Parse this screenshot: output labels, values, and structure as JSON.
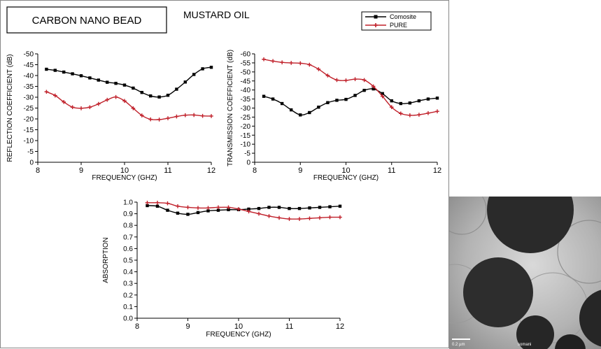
{
  "figure": {
    "title": "CARBON NANO BEAD",
    "subtitle": "MUSTARD OIL",
    "legend": [
      {
        "name": "Comosite",
        "color": "#000000",
        "marker": "square"
      },
      {
        "name": "PURE",
        "color": "#c0202a",
        "marker": "plus"
      }
    ],
    "micrograph": {
      "scale_label": "0.2 µm",
      "caption": "somani"
    }
  },
  "chart_data": [
    {
      "type": "line",
      "id": "reflection",
      "xlabel": "FREQUENCY (GHZ)",
      "ylabel": "REFLECTION COEFFICIENT (dB)",
      "xlim": [
        8,
        12
      ],
      "ylim": [
        0,
        -50
      ],
      "xticks": [
        8,
        9,
        10,
        11,
        12
      ],
      "xtick_labels": [
        "8",
        "9",
        "10",
        "11",
        "12"
      ],
      "yticks": [
        0,
        -5,
        -10,
        -15,
        -20,
        -25,
        -30,
        -35,
        -40,
        -45,
        -50
      ],
      "ytick_labels": [
        "0",
        "-5",
        "-10",
        "-15",
        "-20",
        "-25",
        "-30",
        "-35",
        "-40",
        "-45",
        "-50"
      ],
      "series": [
        {
          "name": "Comosite",
          "x": [
            8.2,
            8.4,
            8.6,
            8.8,
            9.0,
            9.2,
            9.4,
            9.6,
            9.8,
            10.0,
            10.2,
            10.4,
            10.6,
            10.8,
            11.0,
            11.2,
            11.4,
            11.6,
            11.8,
            12.0
          ],
          "y": [
            -42.9,
            -42.4,
            -41.6,
            -40.8,
            -39.9,
            -38.9,
            -37.9,
            -36.9,
            -36.4,
            -35.6,
            -34.2,
            -32.2,
            -30.6,
            -30.1,
            -30.9,
            -33.7,
            -37.0,
            -40.5,
            -43.1,
            -43.8
          ]
        },
        {
          "name": "PURE",
          "x": [
            8.2,
            8.4,
            8.6,
            8.8,
            9.0,
            9.2,
            9.4,
            9.6,
            9.8,
            10.0,
            10.2,
            10.4,
            10.6,
            10.8,
            11.0,
            11.2,
            11.4,
            11.6,
            11.8,
            12.0
          ],
          "y": [
            -32.5,
            -30.8,
            -27.8,
            -25.4,
            -24.9,
            -25.4,
            -26.9,
            -28.8,
            -30.1,
            -28.3,
            -24.9,
            -21.6,
            -19.8,
            -19.7,
            -20.3,
            -21.1,
            -21.7,
            -21.8,
            -21.4,
            -21.3
          ]
        }
      ]
    },
    {
      "type": "line",
      "id": "transmission",
      "xlabel": "FREQUENCY (GHZ)",
      "ylabel": "TRANSMISSION COEFFICIENT (dB)",
      "xlim": [
        8,
        12
      ],
      "ylim": [
        0,
        -60
      ],
      "xticks": [
        8,
        9,
        10,
        11,
        12
      ],
      "xtick_labels": [
        "8",
        "9",
        "10",
        "11",
        "12"
      ],
      "yticks": [
        0,
        -5,
        -10,
        -15,
        -20,
        -25,
        -30,
        -35,
        -40,
        -45,
        -50,
        -55,
        -60
      ],
      "ytick_labels": [
        "0",
        "-5",
        "-10",
        "-15",
        "-20",
        "-25",
        "-30",
        "-35",
        "-40",
        "-45",
        "-50",
        "-55",
        "-60"
      ],
      "series": [
        {
          "name": "Comosite",
          "x": [
            8.2,
            8.4,
            8.6,
            8.8,
            9.0,
            9.2,
            9.4,
            9.6,
            9.8,
            10.0,
            10.2,
            10.4,
            10.6,
            10.8,
            11.0,
            11.2,
            11.4,
            11.6,
            11.8,
            12.0
          ],
          "y": [
            -36.5,
            -35.0,
            -32.5,
            -29.0,
            -26.2,
            -27.5,
            -30.5,
            -33.0,
            -34.3,
            -34.8,
            -37.0,
            -39.8,
            -40.6,
            -38.0,
            -34.0,
            -32.5,
            -32.8,
            -34.0,
            -35.0,
            -35.5
          ]
        },
        {
          "name": "PURE",
          "x": [
            8.2,
            8.4,
            8.6,
            8.8,
            9.0,
            9.2,
            9.4,
            9.6,
            9.8,
            10.0,
            10.2,
            10.4,
            10.6,
            10.8,
            11.0,
            11.2,
            11.4,
            11.6,
            11.8,
            12.0
          ],
          "y": [
            -57.0,
            -56.0,
            -55.3,
            -55.0,
            -54.8,
            -54.0,
            -51.5,
            -48.0,
            -45.5,
            -45.3,
            -46.0,
            -45.5,
            -42.0,
            -36.5,
            -30.5,
            -27.0,
            -26.0,
            -26.3,
            -27.2,
            -28.2
          ]
        }
      ]
    },
    {
      "type": "line",
      "id": "absorption",
      "xlabel": "FREQUENCY (GHZ)",
      "ylabel": "ABSORPTION",
      "xlim": [
        8,
        12
      ],
      "ylim": [
        0,
        1
      ],
      "xticks": [
        8,
        9,
        10,
        11,
        12
      ],
      "xtick_labels": [
        "8",
        "9",
        "10",
        "11",
        "12"
      ],
      "yticks": [
        0,
        0.1,
        0.2,
        0.3,
        0.4,
        0.5,
        0.6,
        0.7,
        0.8,
        0.9,
        1.0
      ],
      "ytick_labels": [
        "0.0",
        "0.1",
        "0.2",
        "0.3",
        "0.4",
        "0.5",
        "0.6",
        "0.7",
        "0.8",
        "0.9",
        "1.0"
      ],
      "series": [
        {
          "name": "Comosite",
          "x": [
            8.2,
            8.4,
            8.6,
            8.8,
            9.0,
            9.2,
            9.4,
            9.6,
            9.8,
            10.0,
            10.2,
            10.4,
            10.6,
            10.8,
            11.0,
            11.2,
            11.4,
            11.6,
            11.8,
            12.0
          ],
          "y": [
            0.97,
            0.965,
            0.93,
            0.905,
            0.895,
            0.91,
            0.925,
            0.93,
            0.935,
            0.935,
            0.94,
            0.945,
            0.955,
            0.955,
            0.945,
            0.945,
            0.95,
            0.955,
            0.96,
            0.965
          ]
        },
        {
          "name": "PURE",
          "x": [
            8.2,
            8.4,
            8.6,
            8.8,
            9.0,
            9.2,
            9.4,
            9.6,
            9.8,
            10.0,
            10.2,
            10.4,
            10.6,
            10.8,
            11.0,
            11.2,
            11.4,
            11.6,
            11.8,
            12.0
          ],
          "y": [
            0.995,
            0.995,
            0.99,
            0.965,
            0.955,
            0.95,
            0.95,
            0.955,
            0.955,
            0.94,
            0.92,
            0.9,
            0.88,
            0.865,
            0.855,
            0.855,
            0.86,
            0.865,
            0.87,
            0.87
          ]
        }
      ]
    }
  ]
}
